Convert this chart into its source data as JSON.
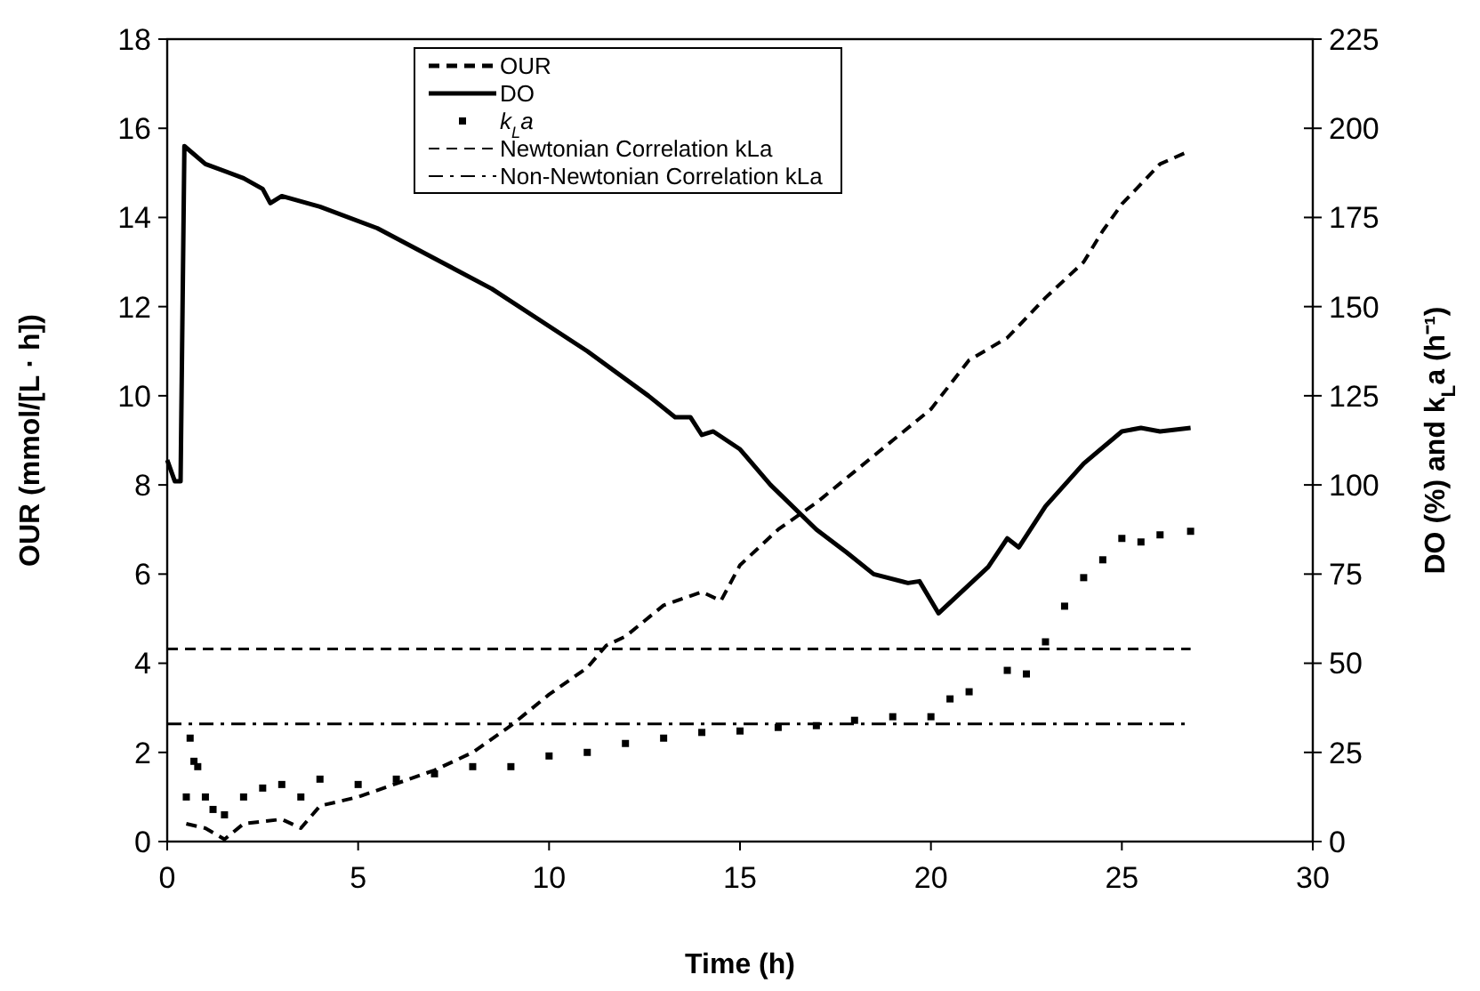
{
  "chart_data": {
    "type": "line",
    "xlabel": "Time (h)",
    "ylabel": "OUR (mmol/[L · h])",
    "y2label": "DO (%) and k$_{L}$a (h⁻¹)",
    "xlim": [
      0,
      30
    ],
    "xticks": [
      0,
      5,
      10,
      15,
      20,
      25,
      30
    ],
    "ylim": [
      0,
      18
    ],
    "yticks": [
      0,
      2,
      4,
      6,
      8,
      10,
      12,
      14,
      16,
      18
    ],
    "y2lim": [
      0,
      225
    ],
    "y2ticks": [
      0,
      25,
      50,
      75,
      100,
      125,
      150,
      175,
      200,
      225
    ],
    "legend": "top",
    "grid": false,
    "series": [
      {
        "name": "OUR",
        "line_style": "dashed",
        "color": "#000000",
        "x": [
          0.5,
          1,
          1.5,
          2,
          3,
          3.5,
          4,
          5,
          6,
          7,
          8,
          9,
          10,
          11,
          11.5,
          12,
          13,
          14,
          14.5,
          15,
          16,
          17,
          18,
          19,
          20,
          21,
          22,
          23,
          24,
          24.5,
          25,
          26,
          26.8
        ],
        "values": [
          0.4,
          0.3,
          0.05,
          0.4,
          0.5,
          0.3,
          0.8,
          1.0,
          1.3,
          1.6,
          2.0,
          2.6,
          3.3,
          3.9,
          4.4,
          4.6,
          5.3,
          5.6,
          5.4,
          6.2,
          7.0,
          7.6,
          8.3,
          9.0,
          9.7,
          10.8,
          11.3,
          12.2,
          13.0,
          13.7,
          14.3,
          15.2,
          15.5
        ]
      },
      {
        "name": "DO",
        "line_style": "solid",
        "axis": "y2",
        "color": "#000000",
        "x": [
          0,
          0.2,
          0.35,
          0.45,
          1,
          2,
          2.5,
          2.7,
          3,
          4,
          5.5,
          8.5,
          11,
          12.6,
          13.3,
          13.7,
          14,
          14.3,
          15,
          15.8,
          17,
          17.8,
          18.5,
          19.4,
          19.7,
          20.2,
          20.8,
          21.5,
          22,
          22.3,
          23,
          24,
          25,
          25.5,
          26,
          26.8
        ],
        "values": [
          107,
          101,
          101,
          195,
          190,
          186,
          183,
          179,
          181,
          178,
          172,
          155,
          137.5,
          125,
          119,
          119,
          114,
          115,
          110,
          100,
          87.5,
          81,
          75,
          72.5,
          73,
          64,
          70,
          77,
          85,
          82.5,
          94,
          106,
          115,
          116,
          115,
          116
        ]
      },
      {
        "name": "k$_{L}$a",
        "type": "scatter",
        "marker": "square",
        "axis": "y2",
        "color": "#000000",
        "x": [
          0.5,
          0.6,
          0.7,
          0.8,
          1,
          1.2,
          1.5,
          2,
          2.5,
          3,
          3.5,
          4,
          5,
          6,
          7,
          8,
          9,
          10,
          11,
          12,
          13,
          14,
          15,
          16,
          17,
          18,
          19,
          20,
          20.5,
          21,
          22,
          22.5,
          23,
          23.5,
          24,
          24.5,
          25,
          25.5,
          26,
          26.8
        ],
        "values": [
          12.5,
          29,
          22.5,
          21,
          12.5,
          9,
          7.5,
          12.5,
          15,
          16,
          12.5,
          17.5,
          16,
          17.5,
          19,
          21,
          21,
          24,
          25,
          27.5,
          29,
          30.6,
          31,
          32,
          32.5,
          34,
          35,
          35,
          40,
          42,
          48,
          47,
          56,
          66,
          74,
          79,
          85,
          84,
          86,
          87
        ]
      }
    ],
    "ref_lines": [
      {
        "axis": "y2",
        "value": 54,
        "label": "Newtonian Correlation kLa",
        "line_style": "dashed",
        "color": "#000000"
      },
      {
        "axis": "y2",
        "value": 33,
        "label": "Non-Newtonian Correlation kLa",
        "line_style": "dashdot",
        "color": "#000000"
      }
    ]
  }
}
